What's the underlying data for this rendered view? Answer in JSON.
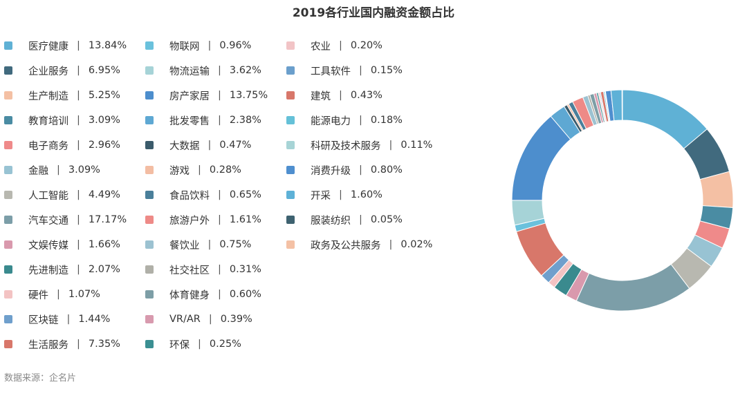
{
  "chart_data": {
    "type": "pie",
    "title": "2019各行业国内融资金额占比",
    "value_unit": "%",
    "legend_placement": "left",
    "source_text": "数据来源：企名片",
    "legend_columns": [
      [
        {
          "label": "医疗健康",
          "value": 13.84,
          "color": "#5fb1d5"
        },
        {
          "label": "企业服务",
          "value": 6.95,
          "color": "#416a7e"
        },
        {
          "label": "生产制造",
          "value": 5.25,
          "color": "#f4c0a4"
        },
        {
          "label": "教育培训",
          "value": 3.09,
          "color": "#4a8ca3"
        },
        {
          "label": "电子商务",
          "value": 2.96,
          "color": "#ef8a8a"
        },
        {
          "label": "金融",
          "value": 3.09,
          "color": "#98c3d3"
        },
        {
          "label": "人工智能",
          "value": 4.49,
          "color": "#b8b8b0"
        },
        {
          "label": "汽车交通",
          "value": 17.17,
          "color": "#7c9ea8"
        },
        {
          "label": "文娱传媒",
          "value": 1.66,
          "color": "#d999ad"
        },
        {
          "label": "先进制造",
          "value": 2.07,
          "color": "#3a8a8e"
        },
        {
          "label": "硬件",
          "value": 1.07,
          "color": "#f3c3c3"
        },
        {
          "label": "区块链",
          "value": 1.44,
          "color": "#6f9fcc"
        },
        {
          "label": "生活服务",
          "value": 7.35,
          "color": "#d8776a"
        }
      ],
      [
        {
          "label": "物联网",
          "value": 0.96,
          "color": "#6ac1dc"
        },
        {
          "label": "物流运输",
          "value": 3.62,
          "color": "#a6d3d7"
        },
        {
          "label": "房产家居",
          "value": 13.75,
          "color": "#4d8ecd"
        },
        {
          "label": "批发零售",
          "value": 2.38,
          "color": "#5ea8d3"
        },
        {
          "label": "大数据",
          "value": 0.47,
          "color": "#3b5b6b"
        },
        {
          "label": "游戏",
          "value": 0.28,
          "color": "#f3bda3"
        },
        {
          "label": "食品饮料",
          "value": 0.65,
          "color": "#4a7f9a"
        },
        {
          "label": "旅游户外",
          "value": 1.61,
          "color": "#ee8a87"
        },
        {
          "label": "餐饮业",
          "value": 0.75,
          "color": "#9cc2d1"
        },
        {
          "label": "社交社区",
          "value": 0.31,
          "color": "#b0b0a8"
        },
        {
          "label": "体育健身",
          "value": 0.6,
          "color": "#7d9ea6"
        },
        {
          "label": "VR/AR",
          "value": 0.39,
          "color": "#d89aae"
        },
        {
          "label": "环保",
          "value": 0.25,
          "color": "#3b8f92"
        }
      ],
      [
        {
          "label": "农业",
          "value": 0.2,
          "color": "#f2c4c6"
        },
        {
          "label": "工具软件",
          "value": 0.15,
          "color": "#6b9fcc"
        },
        {
          "label": "建筑",
          "value": 0.43,
          "color": "#d8776a"
        },
        {
          "label": "能源电力",
          "value": 0.18,
          "color": "#65c1d8"
        },
        {
          "label": "科研及技术服务",
          "value": 0.11,
          "color": "#a7d4d6"
        },
        {
          "label": "消费升级",
          "value": 0.8,
          "color": "#4f8fcf"
        },
        {
          "label": "开采",
          "value": 1.6,
          "color": "#5eb1d7"
        },
        {
          "label": "服装纺织",
          "value": 0.05,
          "color": "#3e6270"
        },
        {
          "label": "政务及公共服务",
          "value": 0.02,
          "color": "#f4c1a5"
        }
      ]
    ]
  }
}
